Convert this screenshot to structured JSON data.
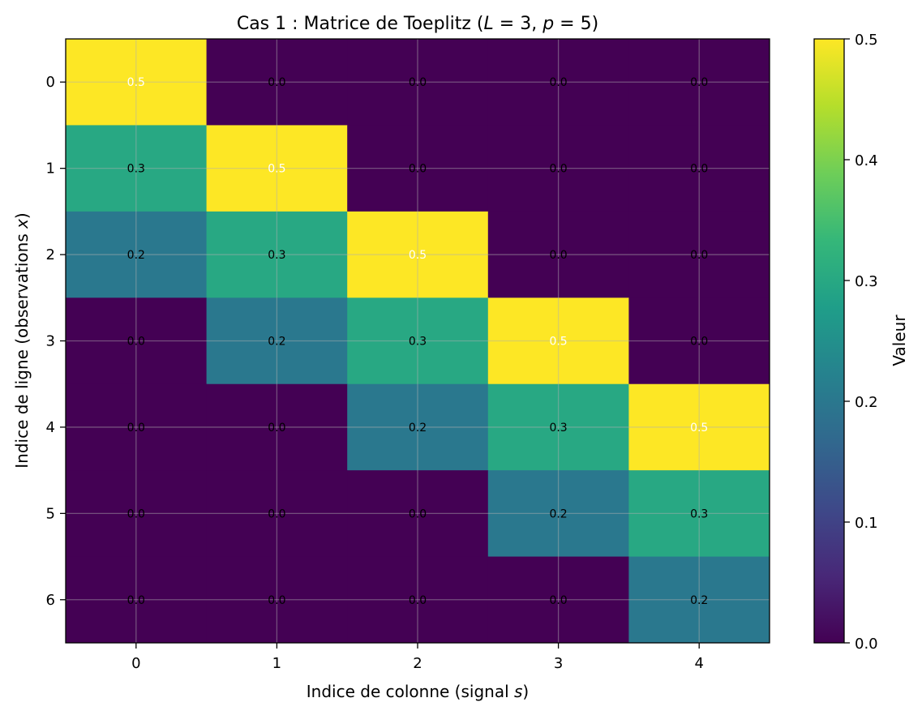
{
  "chart_data": {
    "type": "heatmap",
    "title": "Cas 1 : Matrice de Toeplitz (",
    "title_math": {
      "L": "L",
      "eq1": " = 3, ",
      "p": "p",
      "eq2": " = 5)"
    },
    "xlabel": "Indice de colonne (signal ",
    "xlabel_var": "s",
    "xlabel_end": ")",
    "ylabel": "Indice de ligne (observations ",
    "ylabel_var": "x",
    "ylabel_end": ")",
    "x_ticks": [
      "0",
      "1",
      "2",
      "3",
      "4"
    ],
    "y_ticks": [
      "0",
      "1",
      "2",
      "3",
      "4",
      "5",
      "6"
    ],
    "values": [
      [
        0.5,
        0.0,
        0.0,
        0.0,
        0.0
      ],
      [
        0.3,
        0.5,
        0.0,
        0.0,
        0.0
      ],
      [
        0.2,
        0.3,
        0.5,
        0.0,
        0.0
      ],
      [
        0.0,
        0.2,
        0.3,
        0.5,
        0.0
      ],
      [
        0.0,
        0.0,
        0.2,
        0.3,
        0.5
      ],
      [
        0.0,
        0.0,
        0.0,
        0.2,
        0.3
      ],
      [
        0.0,
        0.0,
        0.0,
        0.0,
        0.2
      ]
    ],
    "value_labels": [
      [
        "0.5",
        "0.0",
        "0.0",
        "0.0",
        "0.0"
      ],
      [
        "0.3",
        "0.5",
        "0.0",
        "0.0",
        "0.0"
      ],
      [
        "0.2",
        "0.3",
        "0.5",
        "0.0",
        "0.0"
      ],
      [
        "0.0",
        "0.2",
        "0.3",
        "0.5",
        "0.0"
      ],
      [
        "0.0",
        "0.0",
        "0.2",
        "0.3",
        "0.5"
      ],
      [
        "0.0",
        "0.0",
        "0.0",
        "0.2",
        "0.3"
      ],
      [
        "0.0",
        "0.0",
        "0.0",
        "0.0",
        "0.2"
      ]
    ],
    "colorbar": {
      "label": "Valeur",
      "range": [
        0.0,
        0.5
      ],
      "ticks": [
        "0.0",
        "0.1",
        "0.2",
        "0.3",
        "0.4",
        "0.5"
      ],
      "colormap": "viridis"
    },
    "grid": true,
    "colors": {
      "viridis_stops": [
        "#440154",
        "#482878",
        "#3e4989",
        "#31688e",
        "#26828e",
        "#1f9e89",
        "#35b779",
        "#6ece58",
        "#b5de2b",
        "#fde725"
      ],
      "label_dark": "#000000",
      "label_light": "#ffffff",
      "grid": "#b0b0b0"
    }
  }
}
